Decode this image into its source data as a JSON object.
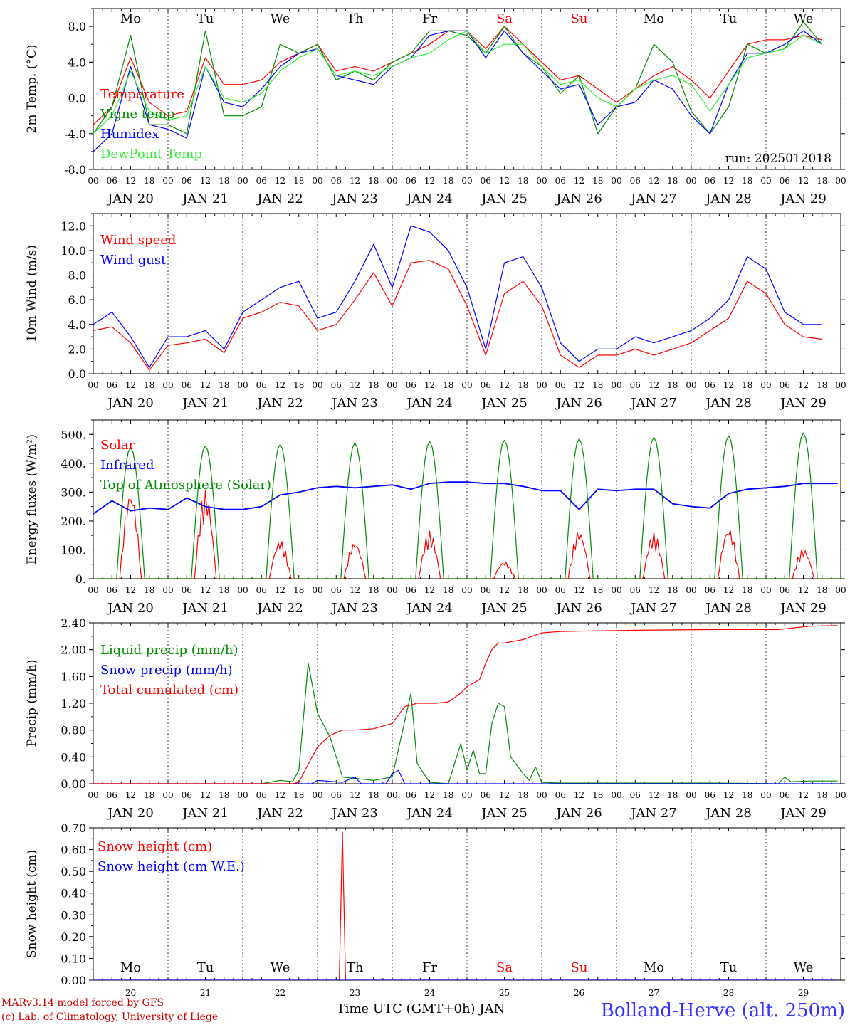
{
  "colors": {
    "temperature": "#ff0000",
    "vigne": "#008c00",
    "humidex": "#0000ff",
    "dewpoint": "#33ee33",
    "wind_speed": "#ff0000",
    "wind_gust": "#0000ff",
    "solar": "#ff0000",
    "infrared": "#0000ff",
    "toa": "#008c00",
    "liquid": "#008c00",
    "snowprecip": "#0000ff",
    "cumul": "#ff0000",
    "snow_h": "#ff0000",
    "snow_we": "#0000ff",
    "weekend": "#ff0000",
    "footer_right": "#3333ff",
    "footer_left": "#cc0000"
  },
  "days": [
    "Mo",
    "Tu",
    "We",
    "Th",
    "Fr",
    "Sa",
    "Su",
    "Mo",
    "Tu",
    "We"
  ],
  "day_numbers": [
    "20",
    "21",
    "22",
    "23",
    "24",
    "25",
    "26",
    "27",
    "28",
    "29"
  ],
  "date_labels": [
    "JAN 20",
    "JAN 21",
    "JAN 22",
    "JAN 23",
    "JAN 24",
    "JAN 25",
    "JAN 26",
    "JAN 27",
    "JAN 28",
    "JAN 29"
  ],
  "hour_ticks": [
    "00",
    "06",
    "12",
    "18"
  ],
  "hour_tick_end": "00",
  "run_label": "run: 2025012018",
  "xlabel": "Time UTC (GMT+0h) JAN",
  "footer": {
    "left1": "MARv3.14 model forced by GFS",
    "left2": "(c) Lab. of Climatology, University of Liege",
    "right": "Bolland-Herve (alt. 250m)"
  },
  "chart_data": [
    {
      "type": "line",
      "ylabel": "2m Temp. (°C)",
      "ylim": [
        -8,
        10
      ],
      "yticks": [
        "-8.0",
        "-4.0",
        "0.0",
        "4.0",
        "8.0"
      ],
      "ytick_values": [
        -8,
        -4,
        0,
        4,
        8
      ],
      "reference_line": 0,
      "series": [
        {
          "name": "Temperature",
          "color_key": "temperature",
          "x_hours": [
            0,
            6,
            12,
            18,
            24,
            30,
            36,
            42,
            48,
            54,
            60,
            66,
            72,
            78,
            84,
            90,
            96,
            102,
            108,
            114,
            120,
            126,
            132,
            138,
            144,
            150,
            156,
            162,
            168,
            174,
            180,
            186,
            192,
            198,
            204,
            210,
            216,
            222,
            228,
            234
          ],
          "values": [
            -3.0,
            -1.0,
            4.5,
            -0.5,
            -2.0,
            -1.5,
            4.5,
            1.5,
            1.5,
            2.0,
            4.0,
            5.0,
            6.0,
            3.0,
            3.5,
            3.0,
            4.0,
            5.0,
            6.0,
            7.5,
            7.5,
            5.5,
            8.0,
            6.0,
            4.0,
            2.0,
            2.5,
            1.0,
            -0.5,
            1.0,
            2.5,
            3.5,
            2.0,
            0.0,
            3.0,
            6.0,
            6.5,
            6.5,
            7.0,
            6.5
          ]
        },
        {
          "name": "Vigne temp",
          "color_key": "vigne",
          "x_hours": [
            0,
            6,
            12,
            18,
            24,
            30,
            36,
            42,
            48,
            54,
            60,
            66,
            72,
            78,
            84,
            90,
            96,
            102,
            108,
            114,
            120,
            126,
            132,
            138,
            144,
            150,
            156,
            162,
            168,
            174,
            180,
            186,
            192,
            198,
            204,
            210,
            216,
            222,
            228,
            234
          ],
          "values": [
            -4.0,
            -1.0,
            7.0,
            -3.0,
            -3.0,
            -4.0,
            7.5,
            -2.0,
            -2.0,
            -1.0,
            6.0,
            5.0,
            6.0,
            2.0,
            3.0,
            2.0,
            4.0,
            5.0,
            7.5,
            7.5,
            7.0,
            5.0,
            8.0,
            5.0,
            3.5,
            0.5,
            2.5,
            -4.0,
            -1.0,
            1.0,
            6.0,
            4.0,
            -1.5,
            -4.0,
            -1.0,
            6.0,
            5.0,
            5.5,
            8.5,
            6.0
          ]
        },
        {
          "name": "Humidex",
          "color_key": "humidex",
          "x_hours": [
            0,
            6,
            12,
            18,
            24,
            30,
            36,
            42,
            48,
            54,
            60,
            66,
            72,
            78,
            84,
            90,
            96,
            102,
            108,
            114,
            120,
            126,
            132,
            138,
            144,
            150,
            156,
            162,
            168,
            174,
            180,
            186,
            192,
            198,
            204,
            210,
            216,
            222,
            228,
            234
          ],
          "values": [
            -6.0,
            -4.0,
            3.5,
            -3.0,
            -3.5,
            -4.5,
            3.5,
            -0.5,
            -1.0,
            1.0,
            3.5,
            5.0,
            5.5,
            2.5,
            2.0,
            1.5,
            3.5,
            4.5,
            7.0,
            7.5,
            7.5,
            4.5,
            7.5,
            5.0,
            3.0,
            1.0,
            1.5,
            -3.0,
            -1.0,
            -0.5,
            2.0,
            1.0,
            -2.0,
            -4.0,
            1.5,
            5.0,
            5.0,
            6.0,
            7.5,
            6.0
          ]
        },
        {
          "name": "DewPoint Temp",
          "color_key": "dewpoint",
          "x_hours": [
            0,
            6,
            12,
            18,
            24,
            30,
            36,
            42,
            48,
            54,
            60,
            66,
            72,
            78,
            84,
            90,
            96,
            102,
            108,
            114,
            120,
            126,
            132,
            138,
            144,
            150,
            156,
            162,
            168,
            174,
            180,
            186,
            192,
            198,
            204,
            210,
            216,
            222,
            228,
            234
          ],
          "values": [
            -4.0,
            -2.0,
            3.0,
            -1.5,
            -2.5,
            -2.0,
            3.5,
            0.0,
            -0.5,
            0.5,
            3.0,
            4.5,
            5.5,
            2.5,
            3.0,
            2.5,
            3.5,
            4.5,
            5.0,
            6.5,
            7.5,
            5.0,
            6.0,
            6.0,
            3.5,
            1.5,
            2.0,
            0.0,
            -1.0,
            1.0,
            2.0,
            2.5,
            1.5,
            -1.5,
            1.5,
            4.5,
            5.0,
            5.5,
            7.0,
            6.0
          ]
        }
      ]
    },
    {
      "type": "line",
      "ylabel": "10m Wind (m/s)",
      "ylim": [
        0,
        13
      ],
      "yticks": [
        "0.0",
        "2.0",
        "4.0",
        "6.0",
        "8.0",
        "10.0",
        "12.0"
      ],
      "ytick_values": [
        0,
        2,
        4,
        6,
        8,
        10,
        12
      ],
      "reference_line": 5,
      "series": [
        {
          "name": "Wind speed",
          "color_key": "wind_speed",
          "x_hours": [
            0,
            6,
            12,
            18,
            24,
            30,
            36,
            42,
            48,
            54,
            60,
            66,
            72,
            78,
            84,
            90,
            96,
            102,
            108,
            114,
            120,
            126,
            132,
            138,
            144,
            150,
            156,
            162,
            168,
            174,
            180,
            186,
            192,
            198,
            204,
            210,
            216,
            222,
            228,
            234
          ],
          "values": [
            3.5,
            3.8,
            2.5,
            0.3,
            2.3,
            2.5,
            2.8,
            1.7,
            4.5,
            5.0,
            5.8,
            5.5,
            3.5,
            4.0,
            6.0,
            8.2,
            5.5,
            9.0,
            9.2,
            8.5,
            5.5,
            1.5,
            6.5,
            7.5,
            5.5,
            1.5,
            0.5,
            1.5,
            1.5,
            2.0,
            1.5,
            2.0,
            2.5,
            3.5,
            4.5,
            7.5,
            6.5,
            4.0,
            3.0,
            2.8
          ]
        },
        {
          "name": "Wind gust",
          "color_key": "wind_gust",
          "x_hours": [
            0,
            6,
            12,
            18,
            24,
            30,
            36,
            42,
            48,
            54,
            60,
            66,
            72,
            78,
            84,
            90,
            96,
            102,
            108,
            114,
            120,
            126,
            132,
            138,
            144,
            150,
            156,
            162,
            168,
            174,
            180,
            186,
            192,
            198,
            204,
            210,
            216,
            222,
            228,
            234
          ],
          "values": [
            4.0,
            5.0,
            3.0,
            0.5,
            3.0,
            3.0,
            3.5,
            2.0,
            5.0,
            6.0,
            7.0,
            7.5,
            4.5,
            5.0,
            7.5,
            10.5,
            7.0,
            12.0,
            11.5,
            10.0,
            7.0,
            2.0,
            9.0,
            9.5,
            7.0,
            2.5,
            1.0,
            2.0,
            2.0,
            3.0,
            2.5,
            3.0,
            3.5,
            4.5,
            6.0,
            9.5,
            8.5,
            5.0,
            4.0,
            4.0
          ]
        }
      ]
    },
    {
      "type": "line",
      "ylabel": "Energy fluxes (W/m²)",
      "ylim": [
        0,
        550
      ],
      "yticks": [
        "0.",
        "100.",
        "200.",
        "300.",
        "400.",
        "500."
      ],
      "ytick_values": [
        0,
        100,
        200,
        300,
        400,
        500
      ],
      "series": [
        {
          "name": "Solar",
          "color_key": "solar",
          "daily_peaks": [
            310,
            310,
            135,
            130,
            165,
            60,
            170,
            160,
            180,
            105
          ]
        },
        {
          "name": "Infrared",
          "color_key": "infrared",
          "x_hours": [
            0,
            6,
            12,
            18,
            24,
            30,
            36,
            42,
            48,
            54,
            60,
            66,
            72,
            78,
            84,
            90,
            96,
            102,
            108,
            114,
            120,
            126,
            132,
            138,
            144,
            150,
            156,
            162,
            168,
            174,
            180,
            186,
            192,
            198,
            204,
            210,
            216,
            222,
            228,
            234,
            239
          ],
          "values": [
            225,
            270,
            235,
            245,
            240,
            280,
            250,
            240,
            240,
            250,
            290,
            300,
            315,
            320,
            315,
            320,
            325,
            310,
            330,
            335,
            335,
            330,
            330,
            320,
            305,
            305,
            240,
            310,
            305,
            310,
            310,
            260,
            250,
            245,
            295,
            310,
            315,
            320,
            330,
            330,
            330
          ]
        },
        {
          "name": "Top of Atmosphere (Solar)",
          "color_key": "toa",
          "daily_peaks": [
            455,
            460,
            465,
            470,
            475,
            480,
            485,
            490,
            495,
            505
          ]
        }
      ]
    },
    {
      "type": "line",
      "ylabel": "Precip (mm/h)",
      "ylim": [
        0,
        2.4
      ],
      "yticks": [
        "0.00",
        "0.40",
        "0.80",
        "1.20",
        "1.60",
        "2.00",
        "2.40"
      ],
      "ytick_values": [
        0,
        0.4,
        0.8,
        1.2,
        1.6,
        2.0,
        2.4
      ],
      "series": [
        {
          "name": "Liquid precip (mm/h)",
          "color_key": "liquid",
          "x_hours": [
            0,
            54,
            60,
            64,
            66,
            69,
            72,
            76,
            80,
            90,
            96,
            102,
            104,
            108,
            114,
            116,
            118,
            120,
            122,
            124,
            126,
            128,
            130,
            132,
            134,
            138,
            140,
            142,
            144,
            150,
            200,
            220,
            222,
            224,
            230,
            239
          ],
          "values": [
            0,
            0,
            0.05,
            0.03,
            0.2,
            1.8,
            1.05,
            0.7,
            0.1,
            0.05,
            0.1,
            1.35,
            0.3,
            0.02,
            0.0,
            0.3,
            0.6,
            0.2,
            0.5,
            0.15,
            0.15,
            0.9,
            1.2,
            1.15,
            0.4,
            0.15,
            0.05,
            0.25,
            0.02,
            0.01,
            0.01,
            0.0,
            0.1,
            0.03,
            0.04,
            0.04
          ]
        },
        {
          "name": "Snow precip (mm/h)",
          "color_key": "snowprecip",
          "x_hours": [
            0,
            70,
            72,
            80,
            84,
            86,
            94,
            96,
            98,
            100,
            110,
            239
          ],
          "values": [
            0,
            0,
            0.05,
            0.02,
            0.1,
            0.0,
            0.0,
            0.15,
            0.2,
            0.0,
            0.0,
            0.0
          ]
        },
        {
          "name": "Total cumulated (cm)",
          "color_key": "cumul",
          "x_hours": [
            0,
            64,
            66,
            68,
            72,
            76,
            80,
            84,
            90,
            96,
            100,
            104,
            110,
            114,
            118,
            120,
            124,
            126,
            128,
            130,
            132,
            138,
            144,
            150,
            160,
            174,
            200,
            220,
            230,
            239
          ],
          "values": [
            0,
            0,
            0.02,
            0.2,
            0.55,
            0.72,
            0.8,
            0.8,
            0.82,
            0.9,
            1.15,
            1.2,
            1.2,
            1.22,
            1.35,
            1.45,
            1.55,
            1.8,
            2.0,
            2.1,
            2.1,
            2.15,
            2.25,
            2.27,
            2.28,
            2.29,
            2.3,
            2.3,
            2.35,
            2.36
          ]
        }
      ]
    },
    {
      "type": "line",
      "ylabel": "Snow height (cm)",
      "ylim": [
        0,
        0.7
      ],
      "yticks": [
        "0.00",
        "0.10",
        "0.20",
        "0.30",
        "0.40",
        "0.50",
        "0.60",
        "0.70"
      ],
      "ytick_values": [
        0,
        0.1,
        0.2,
        0.3,
        0.4,
        0.5,
        0.6,
        0.7
      ],
      "series": [
        {
          "name": "Snow height (cm)",
          "color_key": "snow_h",
          "x_hours": [
            0,
            79,
            80,
            81,
            239
          ],
          "values": [
            0,
            0,
            0.68,
            0,
            0
          ]
        },
        {
          "name": "Snow height (cm W.E.)",
          "color_key": "snow_we",
          "x_hours": [
            0,
            239
          ],
          "values": [
            0,
            0
          ]
        }
      ]
    }
  ]
}
